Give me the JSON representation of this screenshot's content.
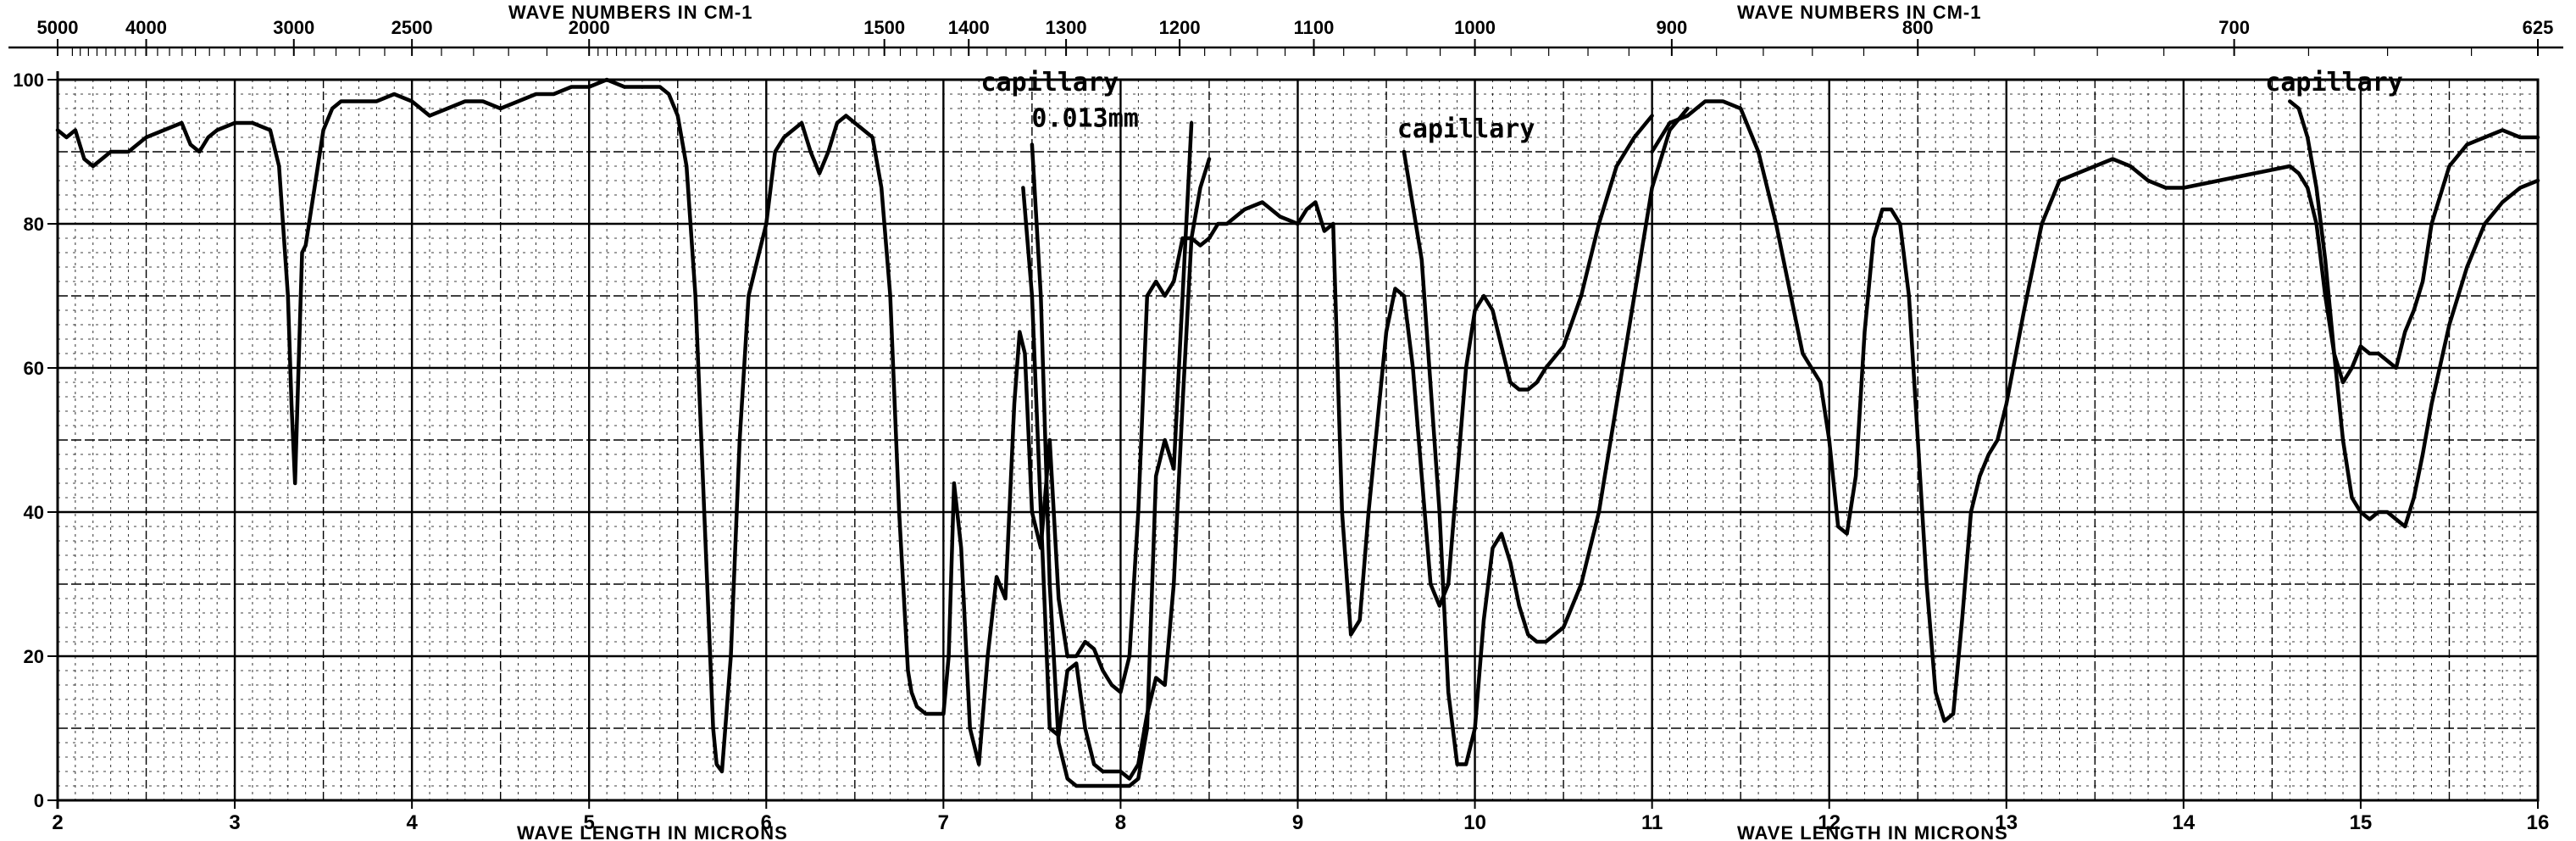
{
  "chart_data": {
    "type": "line",
    "top_axis_title_left": "WAVE NUMBERS IN CM-1",
    "top_axis_title_right": "WAVE NUMBERS IN CM-1",
    "bottom_axis_title_left": "WAVE LENGTH IN MICRONS",
    "bottom_axis_title_right": "WAVE LENGTH IN MICRONS",
    "wavenumber_ticks": [
      {
        "label": "5000",
        "value": 5000
      },
      {
        "label": "4000",
        "value": 4000
      },
      {
        "label": "3000",
        "value": 3000
      },
      {
        "label": "2500",
        "value": 2500
      },
      {
        "label": "2000",
        "value": 2000
      },
      {
        "label": "1500",
        "value": 1500
      },
      {
        "label": "1400",
        "value": 1400
      },
      {
        "label": "1300",
        "value": 1300
      },
      {
        "label": "1200",
        "value": 1200
      },
      {
        "label": "1100",
        "value": 1100
      },
      {
        "label": "1000",
        "value": 1000
      },
      {
        "label": "900",
        "value": 900
      },
      {
        "label": "800",
        "value": 800
      },
      {
        "label": "700",
        "value": 700
      },
      {
        "label": "625",
        "value": 625
      }
    ],
    "x_ticks": [
      "2",
      "3",
      "4",
      "5",
      "6",
      "7",
      "8",
      "9",
      "10",
      "11",
      "12",
      "13",
      "14",
      "15",
      "16"
    ],
    "y_ticks": [
      "0",
      "20",
      "40",
      "60",
      "80",
      "100"
    ],
    "xlim": [
      2,
      16
    ],
    "ylim": [
      0,
      100
    ],
    "grid": true,
    "annotations": [
      {
        "text": "capillary",
        "x": 7.6,
        "y": 98.5
      },
      {
        "text": "0.013mm",
        "x": 7.8,
        "y": 93.5
      },
      {
        "text": "capillary",
        "x": 9.95,
        "y": 92
      },
      {
        "text": "capillary",
        "x": 14.85,
        "y": 98.5
      }
    ],
    "series": [
      {
        "segment": "2-7 microns",
        "x": [
          2.0,
          2.05,
          2.1,
          2.15,
          2.2,
          2.3,
          2.4,
          2.5,
          2.6,
          2.7,
          2.75,
          2.8,
          2.85,
          2.9,
          3.0,
          3.1,
          3.2,
          3.25,
          3.3,
          3.32,
          3.34,
          3.36,
          3.38,
          3.4,
          3.45,
          3.5,
          3.55,
          3.6,
          3.7,
          3.8,
          3.9,
          4.0,
          4.1,
          4.2,
          4.3,
          4.4,
          4.5,
          4.6,
          4.7,
          4.8,
          4.9,
          5.0,
          5.1,
          5.2,
          5.3,
          5.4,
          5.45,
          5.5,
          5.55,
          5.6,
          5.65,
          5.7,
          5.72,
          5.75,
          5.8,
          5.85,
          5.9,
          5.95,
          6.0,
          6.05,
          6.1,
          6.15,
          6.2,
          6.25,
          6.3,
          6.35,
          6.4,
          6.45,
          6.5,
          6.55,
          6.6,
          6.65,
          6.7,
          6.75,
          6.8,
          6.82,
          6.85,
          6.9,
          6.95,
          7.0
        ],
        "y": [
          93,
          92,
          93,
          89,
          88,
          90,
          90,
          92,
          93,
          94,
          91,
          90,
          92,
          93,
          94,
          94,
          93,
          88,
          70,
          55,
          44,
          60,
          76,
          77,
          85,
          93,
          96,
          97,
          97,
          97,
          98,
          97,
          95,
          96,
          97,
          97,
          96,
          97,
          98,
          98,
          99,
          99,
          100,
          99,
          99,
          99,
          98,
          95,
          88,
          70,
          40,
          10,
          5,
          4,
          20,
          50,
          70,
          75,
          80,
          90,
          92,
          93,
          94,
          90,
          87,
          90,
          94,
          95,
          94,
          93,
          92,
          85,
          70,
          40,
          18,
          15,
          13,
          12,
          12,
          12
        ]
      },
      {
        "segment": "7-9 microns",
        "x": [
          7.0,
          7.03,
          7.06,
          7.1,
          7.15,
          7.2,
          7.25,
          7.3,
          7.35,
          7.4,
          7.43,
          7.46,
          7.5,
          7.55,
          7.6,
          7.65,
          7.7,
          7.75,
          7.8,
          7.85,
          7.9,
          7.95,
          8.0,
          8.05,
          8.1,
          8.15,
          8.2,
          8.25,
          8.3,
          8.35,
          8.4,
          8.45,
          8.5,
          8.55,
          8.6,
          8.7,
          8.8,
          8.9,
          9.0,
          9.05,
          9.1,
          9.15,
          9.2
        ],
        "y": [
          12,
          20,
          44,
          35,
          10,
          5,
          20,
          31,
          28,
          55,
          65,
          62,
          40,
          35,
          50,
          28,
          20,
          20,
          22,
          21,
          18,
          16,
          15,
          20,
          40,
          70,
          72,
          70,
          72,
          78,
          78,
          77,
          78,
          80,
          80,
          82,
          83,
          81,
          80,
          82,
          83,
          79,
          80
        ]
      },
      {
        "segment": "7.4-8.5 capillary 0.013mm",
        "x": [
          7.45,
          7.5,
          7.55,
          7.6,
          7.65,
          7.7,
          7.75,
          7.8,
          7.85,
          7.9,
          7.95,
          8.0,
          8.05,
          8.1,
          8.15,
          8.2,
          8.25,
          8.3,
          8.35,
          8.4,
          8.45,
          8.5
        ],
        "y": [
          85,
          70,
          40,
          10,
          9,
          18,
          19,
          10,
          5,
          4,
          4,
          4,
          3,
          5,
          12,
          17,
          16,
          30,
          55,
          78,
          85,
          89
        ]
      },
      {
        "segment": "7.5-8.4 capillary",
        "x": [
          7.5,
          7.55,
          7.6,
          7.65,
          7.7,
          7.75,
          7.8,
          7.85,
          7.9,
          7.95,
          8.0,
          8.05,
          8.1,
          8.15,
          8.2,
          8.25,
          8.3,
          8.35,
          8.4
        ],
        "y": [
          91,
          70,
          30,
          8,
          3,
          2,
          2,
          2,
          2,
          2,
          2,
          2,
          3,
          10,
          45,
          50,
          46,
          70,
          94
        ]
      },
      {
        "segment": "9-11 microns",
        "x": [
          9.2,
          9.25,
          9.3,
          9.35,
          9.4,
          9.5,
          9.55,
          9.6,
          9.65,
          9.7,
          9.75,
          9.8,
          9.85,
          9.9,
          9.95,
          10.0,
          10.05,
          10.1,
          10.15,
          10.2,
          10.25,
          10.3,
          10.35,
          10.4,
          10.5,
          10.6,
          10.7,
          10.8,
          10.9,
          11.0
        ],
        "y": [
          80,
          40,
          23,
          25,
          40,
          65,
          71,
          70,
          60,
          45,
          30,
          27,
          30,
          45,
          60,
          68,
          70,
          68,
          63,
          58,
          57,
          57,
          58,
          60,
          63,
          70,
          80,
          88,
          92,
          95
        ]
      },
      {
        "segment": "9.5-11.2 capillary",
        "x": [
          9.6,
          9.7,
          9.8,
          9.85,
          9.9,
          9.95,
          10.0,
          10.05,
          10.1,
          10.15,
          10.2,
          10.25,
          10.3,
          10.35,
          10.4,
          10.5,
          10.6,
          10.7,
          10.8,
          10.9,
          11.0,
          11.1,
          11.2
        ],
        "y": [
          90,
          75,
          40,
          15,
          5,
          5,
          10,
          25,
          35,
          37,
          33,
          27,
          23,
          22,
          22,
          24,
          30,
          40,
          55,
          70,
          85,
          93,
          96
        ]
      },
      {
        "segment": "11-14 microns",
        "x": [
          11.0,
          11.1,
          11.2,
          11.3,
          11.4,
          11.5,
          11.6,
          11.7,
          11.8,
          11.85,
          11.9,
          11.95,
          12.0,
          12.05,
          12.1,
          12.15,
          12.2,
          12.25,
          12.3,
          12.35,
          12.4,
          12.45,
          12.5,
          12.55,
          12.6,
          12.65,
          12.7,
          12.75,
          12.8,
          12.85,
          12.9,
          12.95,
          13.0,
          13.1,
          13.2,
          13.3,
          13.4,
          13.5,
          13.6,
          13.7,
          13.8,
          13.9,
          14.0
        ],
        "y": [
          90,
          94,
          95,
          97,
          97,
          96,
          90,
          80,
          68,
          62,
          60,
          58,
          50,
          38,
          37,
          45,
          65,
          78,
          82,
          82,
          80,
          70,
          50,
          30,
          15,
          11,
          12,
          25,
          40,
          45,
          48,
          50,
          55,
          68,
          80,
          86,
          87,
          88,
          89,
          88,
          86,
          85,
          85
        ]
      },
      {
        "segment": "14-16 microns",
        "x": [
          14.0,
          14.2,
          14.4,
          14.6,
          14.65,
          14.7,
          14.75,
          14.8,
          14.85,
          14.9,
          14.95,
          15.0,
          15.05,
          15.1,
          15.15,
          15.2,
          15.25,
          15.3,
          15.35,
          15.4,
          15.5,
          15.6,
          15.7,
          15.8,
          15.9,
          16.0
        ],
        "y": [
          85,
          86,
          87,
          88,
          87,
          85,
          80,
          70,
          62,
          58,
          60,
          63,
          62,
          62,
          61,
          60,
          65,
          68,
          72,
          80,
          88,
          91,
          92,
          93,
          92,
          92
        ]
      },
      {
        "segment": "14.6-16 capillary",
        "x": [
          14.6,
          14.65,
          14.7,
          14.75,
          14.8,
          14.85,
          14.9,
          14.95,
          15.0,
          15.05,
          15.1,
          15.15,
          15.2,
          15.25,
          15.3,
          15.35,
          15.4,
          15.5,
          15.6,
          15.7,
          15.8,
          15.9,
          16.0
        ],
        "y": [
          97,
          96,
          92,
          85,
          75,
          62,
          50,
          42,
          40,
          39,
          40,
          40,
          39,
          38,
          42,
          48,
          55,
          66,
          74,
          80,
          83,
          85,
          86
        ]
      }
    ]
  }
}
